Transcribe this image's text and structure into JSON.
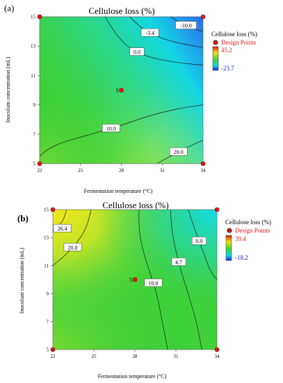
{
  "chart_data": [
    {
      "panel": "(a)",
      "type": "contour",
      "title": "Cellulose loss (%)",
      "xlabel": "Fermentation temperature (°C)",
      "ylabel": "Inoculum concentration (mL)",
      "xlim": [
        22,
        34
      ],
      "ylim": [
        5,
        15
      ],
      "x_ticks": [
        "22",
        "25",
        "28",
        "31",
        "34"
      ],
      "y_ticks": [
        "5",
        "7",
        "9",
        "11",
        "13",
        "15"
      ],
      "contours": [
        {
          "label": "-10.0",
          "points": [
            [
              31.6,
              15.0
            ],
            [
              32.3,
              14.6
            ],
            [
              33.2,
              14.2
            ],
            [
              34.0,
              14.0
            ]
          ]
        },
        {
          "label": "-3.4",
          "points": [
            [
              28.6,
              15.0
            ],
            [
              29.5,
              14.2
            ],
            [
              30.7,
              13.6
            ],
            [
              32.2,
              13.2
            ],
            [
              34.0,
              12.9
            ]
          ]
        },
        {
          "label": "0.0",
          "points": [
            [
              26.8,
              15.0
            ],
            [
              27.6,
              13.8
            ],
            [
              28.5,
              12.9
            ],
            [
              29.8,
              12.3
            ],
            [
              31.8,
              11.9
            ],
            [
              34.0,
              11.7
            ]
          ]
        },
        {
          "label": "10.0",
          "points": [
            [
              22.0,
              5.5
            ],
            [
              22.6,
              6.0
            ],
            [
              23.8,
              6.5
            ],
            [
              25.0,
              6.8
            ],
            [
              26.5,
              7.2
            ],
            [
              28.0,
              7.6
            ],
            [
              29.5,
              8.1
            ],
            [
              31.0,
              8.5
            ],
            [
              32.5,
              8.8
            ],
            [
              34.0,
              9.0
            ]
          ]
        },
        {
          "label": "20.0",
          "points": [
            [
              30.6,
              5.0
            ],
            [
              31.6,
              5.5
            ],
            [
              32.8,
              6.1
            ],
            [
              34.0,
              6.6
            ]
          ]
        }
      ],
      "design_points": [
        [
          22,
          5
        ],
        [
          22,
          15
        ],
        [
          34,
          5
        ],
        [
          34,
          15
        ],
        [
          28,
          10
        ]
      ],
      "center_point_label": "5",
      "legend": {
        "title": "Cellulose loss (%)",
        "marker_label": "Design Points",
        "max": "45.2",
        "min": "-23.7"
      }
    },
    {
      "panel": "(b)",
      "type": "contour",
      "title": "Cellulose loss (%)",
      "xlabel": "Fermentation temperature (°C)",
      "ylabel": "Inoculum concentration (mL)",
      "xlim": [
        22,
        34
      ],
      "ylim": [
        5,
        15
      ],
      "x_ticks": [
        "22",
        "25",
        "28",
        "31",
        "34"
      ],
      "y_ticks": [
        "5",
        "7",
        "9",
        "11",
        "13",
        "15"
      ],
      "contours": [
        {
          "label": "26.4",
          "points": [
            [
              23.0,
              15.0
            ],
            [
              22.8,
              14.3
            ],
            [
              22.4,
              13.8
            ],
            [
              22.0,
              13.5
            ]
          ]
        },
        {
          "label": "20.0",
          "points": [
            [
              24.8,
              15.0
            ],
            [
              24.5,
              13.8
            ],
            [
              23.9,
              12.8
            ],
            [
              23.0,
              11.8
            ],
            [
              22.0,
              11.0
            ]
          ]
        },
        {
          "label": "10.0",
          "points": [
            [
              28.3,
              15.0
            ],
            [
              28.3,
              13.5
            ],
            [
              28.6,
              12.0
            ],
            [
              29.1,
              10.5
            ],
            [
              29.6,
              9.0
            ],
            [
              30.0,
              7.0
            ],
            [
              30.4,
              5.0
            ]
          ]
        },
        {
          "label": "4.7",
          "points": [
            [
              30.6,
              15.0
            ],
            [
              30.7,
              13.5
            ],
            [
              31.0,
              12.0
            ],
            [
              31.4,
              10.5
            ],
            [
              31.9,
              9.0
            ],
            [
              32.5,
              7.0
            ],
            [
              32.9,
              5.0
            ]
          ]
        },
        {
          "label": "0.0",
          "points": [
            [
              31.9,
              15.0
            ],
            [
              32.4,
              13.5
            ],
            [
              33.0,
              12.0
            ],
            [
              33.5,
              10.6
            ],
            [
              34.0,
              10.0
            ]
          ]
        }
      ],
      "design_points": [
        [
          22,
          5
        ],
        [
          22,
          15
        ],
        [
          34,
          5
        ],
        [
          34,
          15
        ],
        [
          28,
          10
        ]
      ],
      "center_point_label": "5",
      "legend": {
        "title": "Cellulose loss (%)",
        "marker_label": "Design Points",
        "max": "39.4",
        "min": "-18.2"
      }
    }
  ],
  "colors": {
    "plot_base": "#3fd13a",
    "hot": "#e8e81a",
    "hot_alt": "#d8e020",
    "cold": "#11d9e6",
    "cold_deep": "#3a7af0",
    "design_point": "#e8151b",
    "legend_max_text": "#e8151b",
    "legend_min_text": "#2020e0",
    "contour_line": "#1a1a1a"
  }
}
